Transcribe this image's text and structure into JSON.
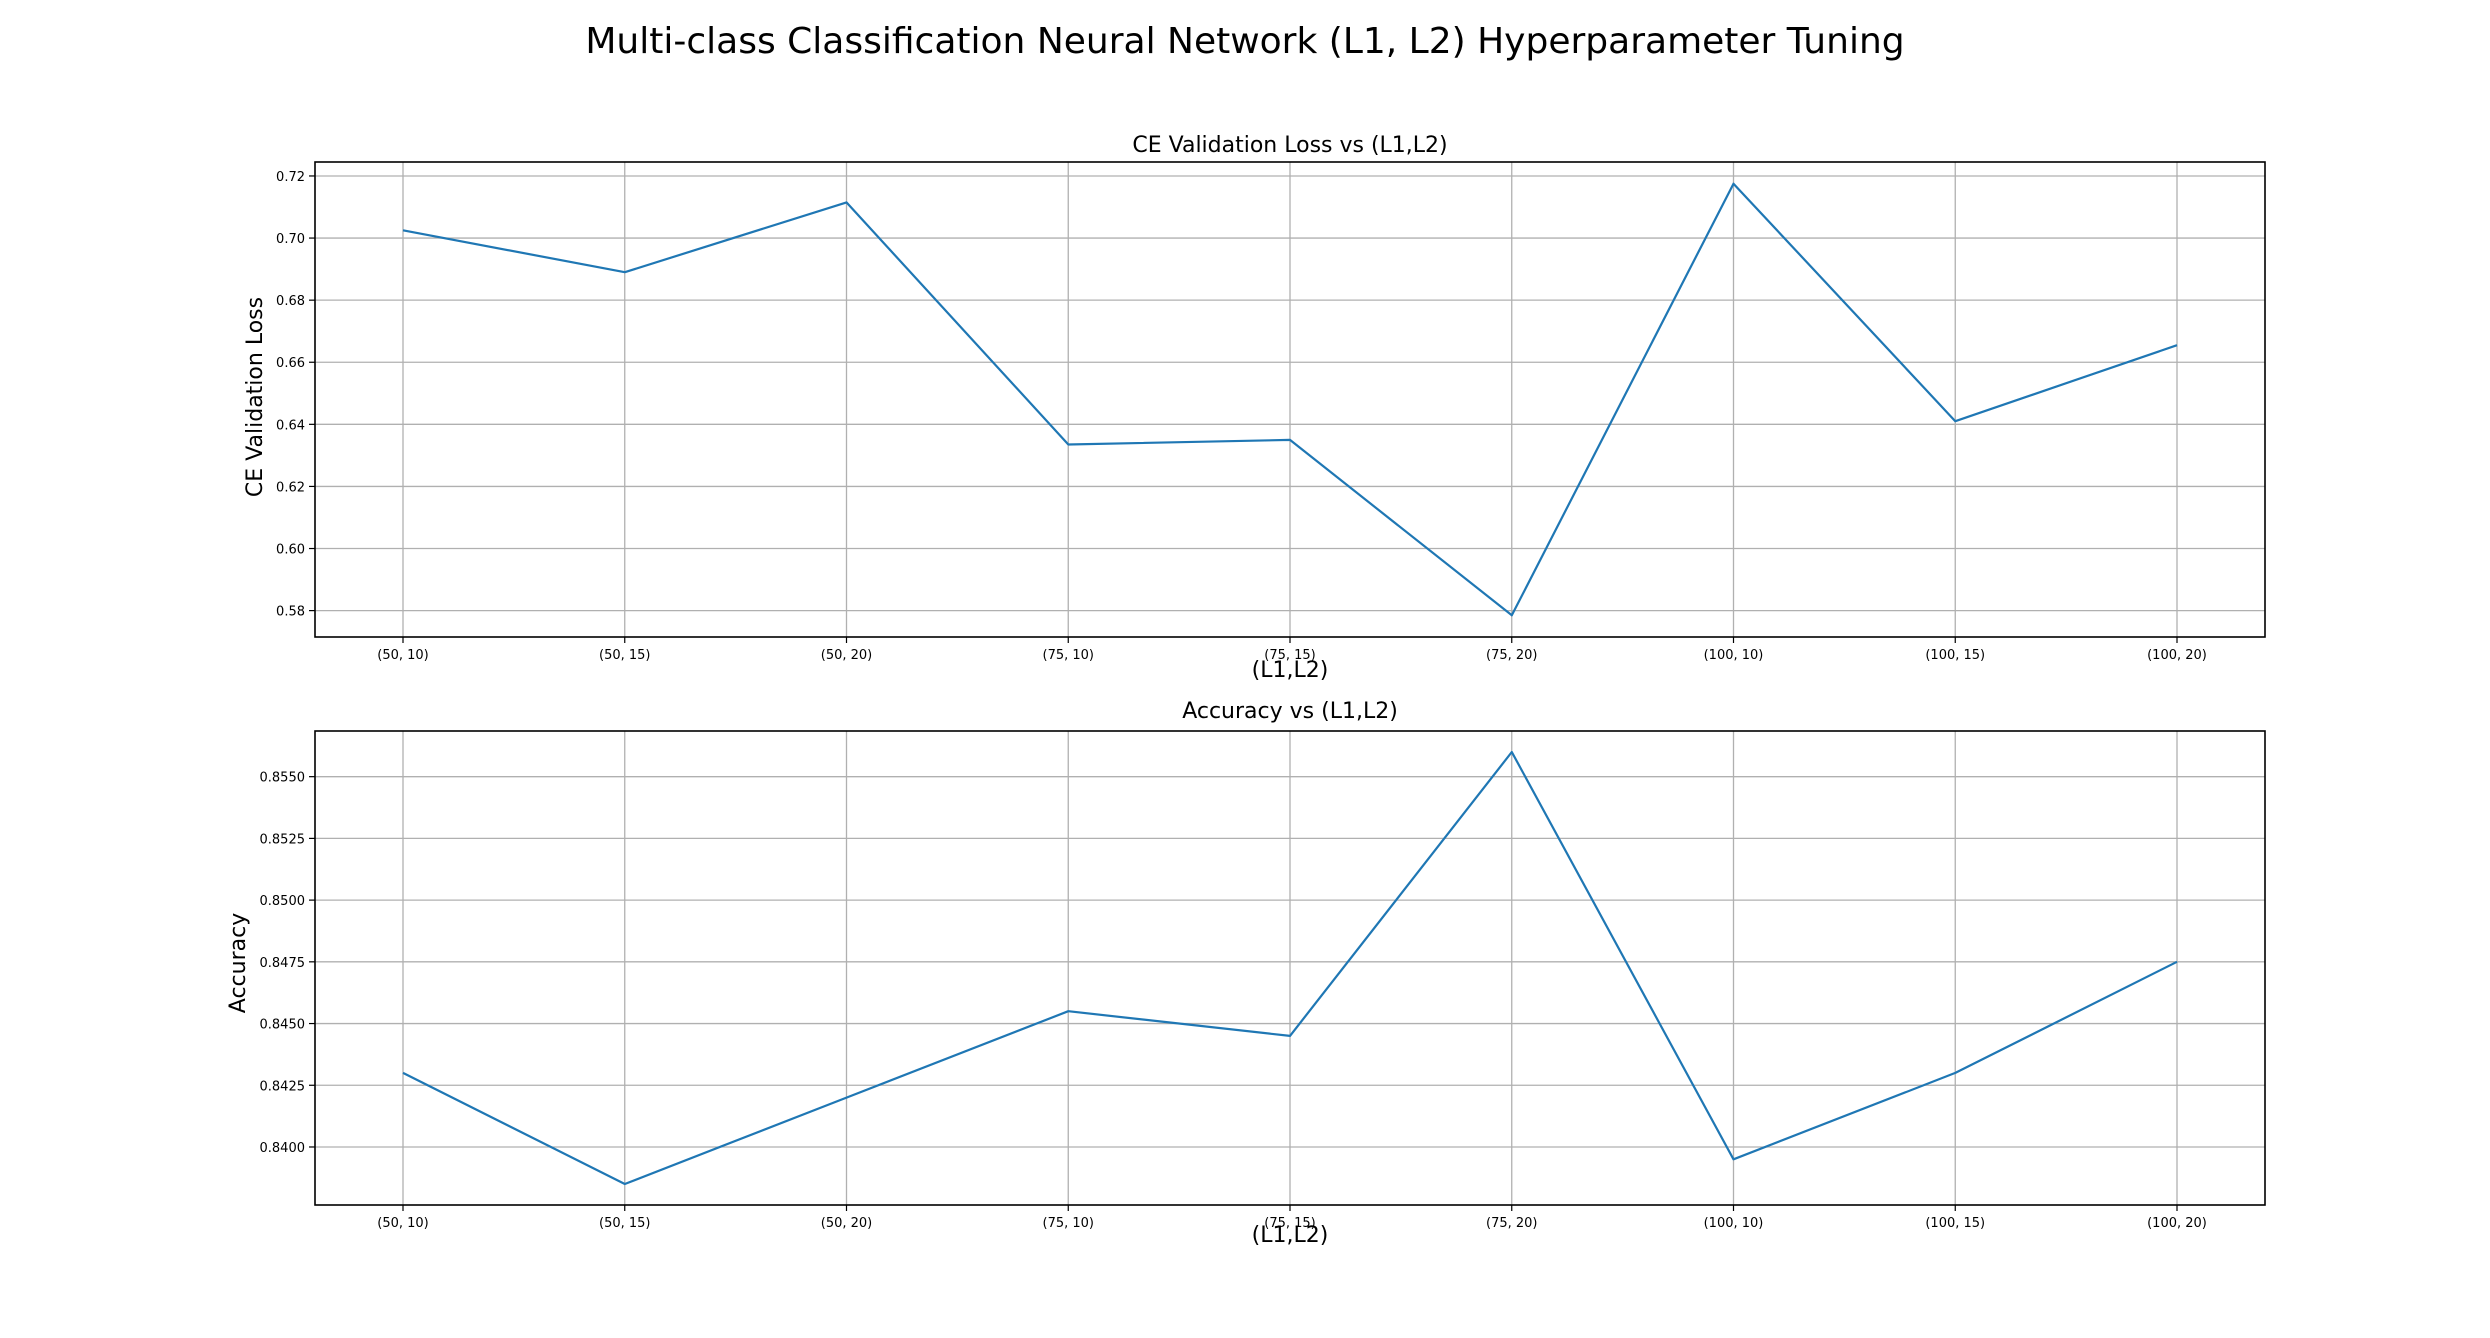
{
  "figure": {
    "suptitle": "Multi-class Classification Neural Network (L1, L2) Hyperparameter Tuning"
  },
  "colors": {
    "line": "#1f77b4",
    "grid": "#b0b0b0",
    "axes": "#000000"
  },
  "chart_data": [
    {
      "type": "line",
      "title": "CE Validation Loss vs (L1,L2)",
      "xlabel": "(L1,L2)",
      "ylabel": "CE Validation Loss",
      "categories": [
        "(50, 10)",
        "(50, 15)",
        "(50, 20)",
        "(75, 10)",
        "(75, 15)",
        "(75, 20)",
        "(100, 10)",
        "(100, 15)",
        "(100, 20)"
      ],
      "values": [
        0.7025,
        0.689,
        0.7115,
        0.6335,
        0.635,
        0.5785,
        0.7175,
        0.641,
        0.6655
      ],
      "ylim": [
        0.5715,
        0.7245
      ],
      "yticks": [
        "0.58",
        "0.60",
        "0.62",
        "0.64",
        "0.66",
        "0.68",
        "0.70",
        "0.72"
      ],
      "grid": true,
      "legend": "none"
    },
    {
      "type": "line",
      "title": "Accuracy vs (L1,L2)",
      "xlabel": "(L1,L2)",
      "ylabel": "Accuracy",
      "categories": [
        "(50, 10)",
        "(50, 15)",
        "(50, 20)",
        "(75, 10)",
        "(75, 15)",
        "(75, 20)",
        "(100, 10)",
        "(100, 15)",
        "(100, 20)"
      ],
      "values": [
        0.843,
        0.8385,
        0.842,
        0.8455,
        0.8445,
        0.856,
        0.8395,
        0.843,
        0.8475
      ],
      "ylim": [
        0.83765,
        0.85685
      ],
      "yticks": [
        "0.8400",
        "0.8425",
        "0.8450",
        "0.8475",
        "0.8500",
        "0.8525",
        "0.8550"
      ],
      "grid": true,
      "legend": "none"
    }
  ]
}
